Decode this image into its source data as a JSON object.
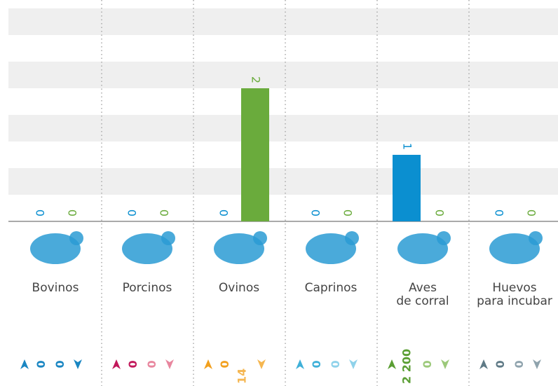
{
  "chart_data": {
    "type": "bar",
    "categories": [
      "Bovinos",
      "Porcinos",
      "Ovinos",
      "Caprinos",
      "Aves\nde corral",
      "Huevos\npara incubar"
    ],
    "series": [
      {
        "color": "#0b8fd0",
        "values": [
          0,
          0,
          0,
          0,
          1,
          0
        ]
      },
      {
        "color": "#6aab3c",
        "values": [
          0,
          0,
          2,
          0,
          0,
          0
        ]
      }
    ],
    "ylim": [
      0,
      3.2
    ],
    "flows": [
      {
        "up": 0,
        "down": 0,
        "up_color": "#1a86c2",
        "down_color": "#1a86c2"
      },
      {
        "up": 0,
        "down": 0,
        "up_color": "#c2185b",
        "down_color": "#e8869e"
      },
      {
        "up": 0,
        "down": 14,
        "up_color": "#f2a01e",
        "down_color": "#f5b650"
      },
      {
        "up": 0,
        "down": 0,
        "up_color": "#3fb0d8",
        "down_color": "#8fd2ea"
      },
      {
        "up": 2200,
        "up_label": "2 200",
        "down": 0,
        "up_color": "#5a9e33",
        "down_color": "#9cc97a"
      },
      {
        "up": 0,
        "down": 0,
        "up_color": "#5f7a86",
        "down_color": "#8fa3ad"
      }
    ]
  }
}
